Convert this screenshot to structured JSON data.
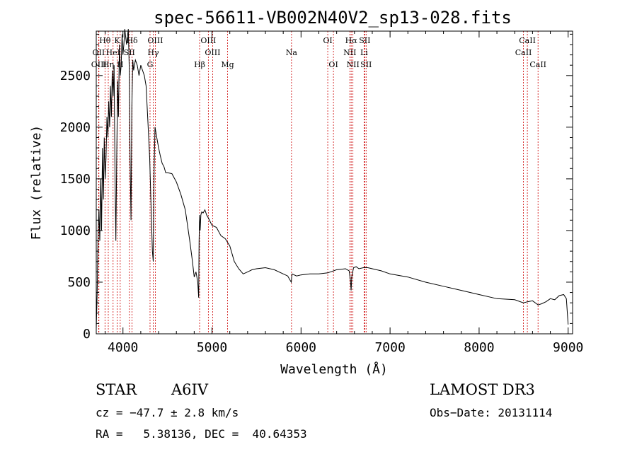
{
  "chart_data": {
    "type": "line",
    "title": "spec-56611-VB002N40V2_sp13-028.fits",
    "xlabel": "Wavelength (Å)",
    "ylabel": "Flux (relative)",
    "xlim": [
      3700,
      9050
    ],
    "ylim": [
      0,
      2930
    ],
    "xticks": [
      4000,
      5000,
      6000,
      7000,
      8000,
      9000
    ],
    "yticks": [
      0,
      500,
      1000,
      1500,
      2000,
      2500
    ],
    "line_color": "#000000",
    "marker_color": "#cc0000",
    "x": [
      3700,
      3710,
      3720,
      3730,
      3740,
      3750,
      3760,
      3770,
      3780,
      3790,
      3800,
      3810,
      3820,
      3830,
      3840,
      3850,
      3860,
      3870,
      3880,
      3890,
      3900,
      3910,
      3920,
      3930,
      3940,
      3950,
      3960,
      3970,
      3980,
      3990,
      4000,
      4010,
      4020,
      4040,
      4060,
      4070,
      4080,
      4090,
      4100,
      4110,
      4120,
      4140,
      4160,
      4180,
      4200,
      4220,
      4240,
      4260,
      4280,
      4300,
      4320,
      4330,
      4340,
      4350,
      4360,
      4380,
      4400,
      4420,
      4440,
      4460,
      4480,
      4500,
      4550,
      4600,
      4650,
      4700,
      4750,
      4780,
      4800,
      4820,
      4840,
      4850,
      4855,
      4861,
      4867,
      4875,
      4885,
      4900,
      4920,
      4940,
      4960,
      5000,
      5050,
      5100,
      5150,
      5200,
      5250,
      5300,
      5350,
      5400,
      5450,
      5500,
      5600,
      5700,
      5800,
      5850,
      5890,
      5895,
      5900,
      5950,
      6000,
      6100,
      6200,
      6300,
      6400,
      6500,
      6540,
      6555,
      6563,
      6570,
      6590,
      6620,
      6650,
      6700,
      6750,
      6800,
      6900,
      7000,
      7200,
      7400,
      7600,
      7800,
      8000,
      8200,
      8400,
      8498,
      8542,
      8600,
      8662,
      8700,
      8750,
      8800,
      8850,
      8900,
      8950,
      8980,
      9000
    ],
    "values": [
      50,
      400,
      950,
      1200,
      900,
      1500,
      1000,
      1800,
      1300,
      1900,
      1500,
      1700,
      2100,
      1900,
      2250,
      2000,
      2400,
      2100,
      2550,
      2300,
      2600,
      1600,
      900,
      1700,
      2450,
      2100,
      2800,
      2500,
      2600,
      2900,
      2700,
      2800,
      2950,
      2800,
      2950,
      2600,
      1700,
      1100,
      2200,
      2650,
      2550,
      2650,
      2600,
      2500,
      2600,
      2550,
      2500,
      2400,
      2050,
      1700,
      1100,
      800,
      700,
      1600,
      2000,
      1900,
      1800,
      1720,
      1650,
      1620,
      1560,
      1560,
      1550,
      1470,
      1350,
      1200,
      900,
      700,
      550,
      600,
      500,
      350,
      900,
      1150,
      1000,
      1150,
      1180,
      1170,
      1200,
      1150,
      1120,
      1050,
      1030,
      950,
      920,
      850,
      700,
      630,
      580,
      600,
      620,
      630,
      640,
      620,
      580,
      560,
      500,
      550,
      580,
      560,
      570,
      580,
      580,
      590,
      620,
      630,
      610,
      520,
      420,
      550,
      640,
      650,
      630,
      640,
      640,
      630,
      610,
      580,
      550,
      500,
      460,
      420,
      380,
      340,
      330,
      300,
      310,
      320,
      280,
      290,
      310,
      340,
      330,
      370,
      380,
      340,
      90
    ]
  },
  "line_labels": [
    {
      "label": "Hθ",
      "wavelength": 3798,
      "row": 0
    },
    {
      "label": "OII",
      "wavelength": 3727,
      "row": 1
    },
    {
      "label": "OIII",
      "wavelength": 3730,
      "row": 2
    },
    {
      "label": "K",
      "wavelength": 3934,
      "row": 0
    },
    {
      "label": "HeI",
      "wavelength": 3889,
      "row": 1
    },
    {
      "label": "Hη",
      "wavelength": 3835,
      "row": 2
    },
    {
      "label": "Hδ",
      "wavelength": 4102,
      "row": 0
    },
    {
      "label": "SII",
      "wavelength": 4072,
      "row": 1
    },
    {
      "label": "H",
      "wavelength": 3969,
      "row": 2
    },
    {
      "label": "OIII",
      "wavelength": 4363,
      "row": 0
    },
    {
      "label": "Hγ",
      "wavelength": 4340,
      "row": 1
    },
    {
      "label": "G",
      "wavelength": 4304,
      "row": 2
    },
    {
      "label": "OIII",
      "wavelength": 4959,
      "row": 0
    },
    {
      "label": "OIII",
      "wavelength": 5007,
      "row": 1
    },
    {
      "label": "Hβ",
      "wavelength": 4861,
      "row": 2
    },
    {
      "label": "Mg",
      "wavelength": 5175,
      "row": 2
    },
    {
      "label": "Na",
      "wavelength": 5893,
      "row": 1
    },
    {
      "label": "OI",
      "wavelength": 6300,
      "row": 0
    },
    {
      "label": "OI",
      "wavelength": 6364,
      "row": 2
    },
    {
      "label": "Hα",
      "wavelength": 6563,
      "row": 0
    },
    {
      "label": "SII",
      "wavelength": 6716,
      "row": 0
    },
    {
      "label": "NII",
      "wavelength": 6548,
      "row": 1
    },
    {
      "label": "Li",
      "wavelength": 6708,
      "row": 1
    },
    {
      "label": "NII",
      "wavelength": 6583,
      "row": 2
    },
    {
      "label": "SII",
      "wavelength": 6731,
      "row": 2
    },
    {
      "label": "CaII",
      "wavelength": 8542,
      "row": 0
    },
    {
      "label": "CaII",
      "wavelength": 8498,
      "row": 1
    },
    {
      "label": "CaII",
      "wavelength": 8662,
      "row": 2
    }
  ],
  "info": {
    "object_type": "STAR",
    "spectral_class": "A6IV",
    "survey": "LAMOST DR3",
    "cz": "cz = −47.7 ± 2.8 km/s",
    "obs_date": "Obs−Date: 20131114",
    "coords": "RA =   5.38136, DEC =  40.64353"
  }
}
